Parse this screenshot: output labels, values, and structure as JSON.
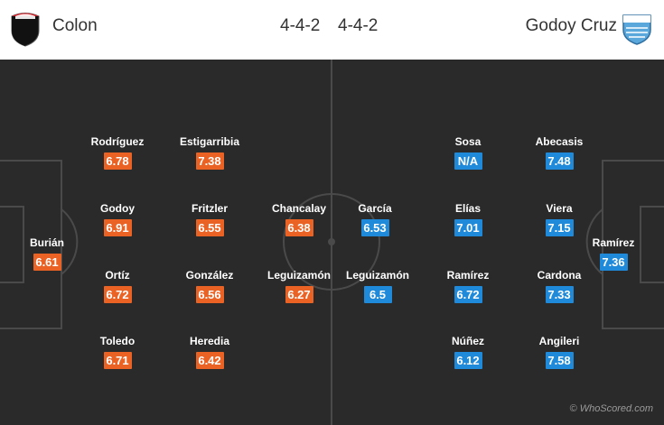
{
  "header": {
    "home_team": "Colon",
    "home_formation": "4-4-2",
    "away_formation": "4-4-2",
    "away_team": "Godoy Cruz",
    "home_crest_colors": [
      "#d3222a",
      "#111111"
    ],
    "away_crest_colors": [
      "#5aa7dc",
      "#ffffff"
    ]
  },
  "colors": {
    "home_rating": "#ea6325",
    "away_rating": "#1f8ad9",
    "pitch": "#2a2a2a",
    "pitch_lines": "#4a4a4a"
  },
  "home_players": [
    {
      "name": "Burián",
      "rating": "6.61"
    },
    {
      "name": "Rodríguez",
      "rating": "6.78"
    },
    {
      "name": "Godoy",
      "rating": "6.91"
    },
    {
      "name": "Ortíz",
      "rating": "6.72"
    },
    {
      "name": "Toledo",
      "rating": "6.71"
    },
    {
      "name": "Estigarribia",
      "rating": "7.38"
    },
    {
      "name": "Fritzler",
      "rating": "6.55"
    },
    {
      "name": "González",
      "rating": "6.56"
    },
    {
      "name": "Heredia",
      "rating": "6.42"
    },
    {
      "name": "Chancalay",
      "rating": "6.38"
    },
    {
      "name": "Leguizamón",
      "rating": "6.27"
    }
  ],
  "away_players": [
    {
      "name": "García",
      "rating": "6.53"
    },
    {
      "name": "Leguizamón",
      "rating": "6.5"
    },
    {
      "name": "Sosa",
      "rating": "N/A"
    },
    {
      "name": "Elías",
      "rating": "7.01"
    },
    {
      "name": "Ramírez",
      "rating": "6.72"
    },
    {
      "name": "Núñez",
      "rating": "6.12"
    },
    {
      "name": "Abecasis",
      "rating": "7.48"
    },
    {
      "name": "Viera",
      "rating": "7.15"
    },
    {
      "name": "Cardona",
      "rating": "7.33"
    },
    {
      "name": "Angileri",
      "rating": "7.58"
    },
    {
      "name": "Ramírez",
      "rating": "7.36"
    }
  ],
  "credit": "© WhoScored.com"
}
